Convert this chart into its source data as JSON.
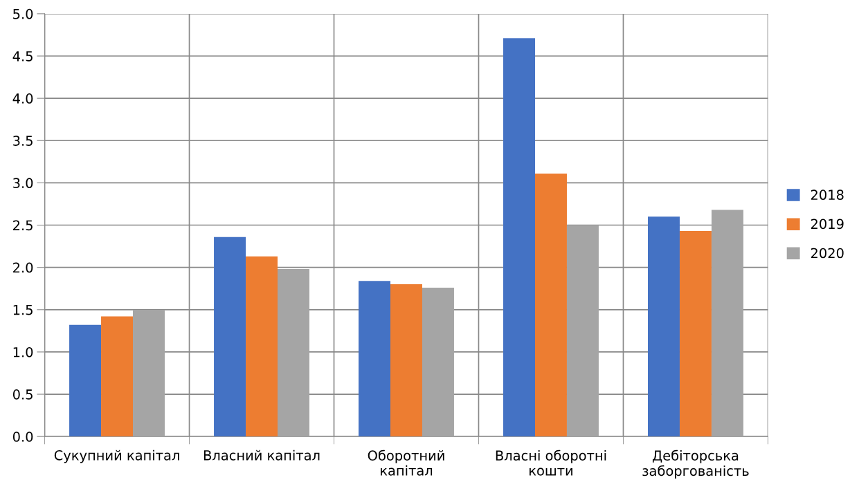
{
  "chart_data": {
    "type": "bar",
    "categories": [
      "Сукупний капітал",
      "Власний капітал",
      "Оборотний\nкапітал",
      "Власні оборотні\nкошти",
      "Дебіторська\nзаборгованість"
    ],
    "series": [
      {
        "name": "2018",
        "color": "#4472c4",
        "values": [
          1.32,
          2.36,
          1.84,
          4.71,
          2.6
        ]
      },
      {
        "name": "2019",
        "color": "#ed7d31",
        "values": [
          1.42,
          2.13,
          1.8,
          3.11,
          2.43
        ]
      },
      {
        "name": "2020",
        "color": "#a5a5a5",
        "values": [
          1.49,
          1.98,
          1.76,
          2.5,
          2.68
        ]
      }
    ],
    "ylim": [
      0,
      5.0
    ],
    "yticks": [
      {
        "value": 0,
        "label": "0.0"
      },
      {
        "value": 0.5,
        "label": "0.5"
      },
      {
        "value": 1.0,
        "label": "1.0"
      },
      {
        "value": 1.5,
        "label": "1.5"
      },
      {
        "value": 2.0,
        "label": "2.0"
      },
      {
        "value": 2.5,
        "label": "2.5"
      },
      {
        "value": 3.0,
        "label": "3.0"
      },
      {
        "value": 3.5,
        "label": "3.5"
      },
      {
        "value": 4.0,
        "label": "4.0"
      },
      {
        "value": 4.5,
        "label": "4.5"
      },
      {
        "value": 5.0,
        "label": "5.0"
      }
    ],
    "grid": true,
    "legend": "right"
  }
}
